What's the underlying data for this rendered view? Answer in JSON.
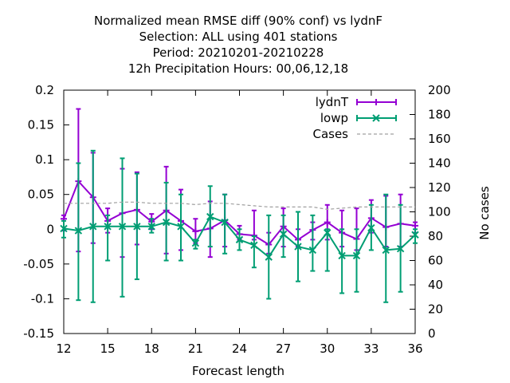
{
  "chart_data": {
    "type": "line",
    "title_lines": [
      "Normalized mean RMSE diff (90% conf) vs lydnF",
      "Selection: ALL using   401 stations",
      "Period: 20210201-20210228",
      "12h Precipitation   Hours:  00,06,12,18"
    ],
    "xlabel": "Forecast length",
    "y2label": "No cases",
    "xlim": [
      12,
      36
    ],
    "ylim": [
      -0.15,
      0.2
    ],
    "y2lim": [
      0,
      200
    ],
    "xticks": [
      12,
      15,
      18,
      21,
      24,
      27,
      30,
      33,
      36
    ],
    "yticks": [
      -0.15,
      -0.1,
      -0.05,
      0,
      0.05,
      0.1,
      0.15,
      0.2
    ],
    "ytick_labels": [
      "-0.15",
      "-0.1",
      "-0.05",
      "0",
      "0.05",
      "0.1",
      "0.15",
      "0.2"
    ],
    "y2ticks": [
      0,
      20,
      40,
      60,
      80,
      100,
      120,
      140,
      160,
      180,
      200
    ],
    "legend_position": "top-right",
    "x": [
      12,
      13,
      14,
      15,
      16,
      17,
      18,
      19,
      20,
      21,
      22,
      23,
      24,
      25,
      26,
      27,
      28,
      29,
      30,
      31,
      32,
      33,
      34,
      35,
      36
    ],
    "series": [
      {
        "name": "lydnT",
        "color": "#9400d3",
        "marker": "plus",
        "values": [
          0.015,
          0.069,
          0.046,
          0.012,
          0.023,
          0.028,
          0.011,
          0.027,
          0.012,
          -0.003,
          0.001,
          0.013,
          -0.007,
          -0.009,
          -0.022,
          0.004,
          -0.015,
          -0.001,
          0.01,
          -0.005,
          -0.014,
          0.016,
          0.003,
          0.008,
          0.005
        ],
        "low": [
          -0.002,
          -0.032,
          -0.02,
          -0.005,
          -0.04,
          -0.022,
          0.0,
          -0.035,
          -0.03,
          -0.02,
          -0.04,
          -0.025,
          -0.015,
          -0.015,
          -0.035,
          -0.025,
          -0.025,
          -0.015,
          -0.015,
          -0.025,
          -0.03,
          -0.005,
          -0.025,
          -0.025,
          -0.005
        ],
        "high": [
          0.02,
          0.173,
          0.11,
          0.03,
          0.087,
          0.082,
          0.022,
          0.09,
          0.057,
          0.015,
          0.04,
          0.05,
          0.005,
          0.027,
          -0.005,
          0.03,
          0.0,
          0.01,
          0.035,
          0.027,
          0.03,
          0.042,
          0.048,
          0.05,
          0.01
        ]
      },
      {
        "name": "lowp",
        "color": "#009e73",
        "marker": "cross",
        "values": [
          0.001,
          -0.002,
          0.004,
          0.004,
          0.004,
          0.004,
          0.004,
          0.01,
          0.004,
          -0.02,
          0.018,
          0.01,
          -0.015,
          -0.023,
          -0.04,
          -0.007,
          -0.025,
          -0.03,
          -0.005,
          -0.038,
          -0.038,
          0.002,
          -0.03,
          -0.028,
          -0.008
        ],
        "low": [
          -0.012,
          -0.102,
          -0.105,
          -0.045,
          -0.097,
          -0.072,
          -0.005,
          -0.045,
          -0.045,
          -0.028,
          -0.025,
          -0.035,
          -0.03,
          -0.055,
          -0.1,
          -0.04,
          -0.075,
          -0.06,
          -0.06,
          -0.092,
          -0.09,
          -0.03,
          -0.105,
          -0.09,
          -0.02
        ],
        "high": [
          0.012,
          0.095,
          0.113,
          0.02,
          0.102,
          0.08,
          0.015,
          0.067,
          0.05,
          -0.015,
          0.062,
          0.05,
          0.0,
          -0.01,
          0.02,
          0.02,
          0.025,
          0.02,
          0.0,
          0.0,
          0.0,
          0.035,
          0.05,
          0.035,
          0.0
        ]
      },
      {
        "name": "Cases",
        "color": "#a0a0a0",
        "dashed": true,
        "axis": "y2",
        "values": [
          107,
          107,
          107,
          107,
          108,
          108,
          107,
          107,
          107,
          106,
          107,
          107,
          106,
          105,
          104,
          104,
          104,
          104,
          102,
          103,
          104,
          104,
          104,
          104,
          104
        ]
      }
    ]
  }
}
